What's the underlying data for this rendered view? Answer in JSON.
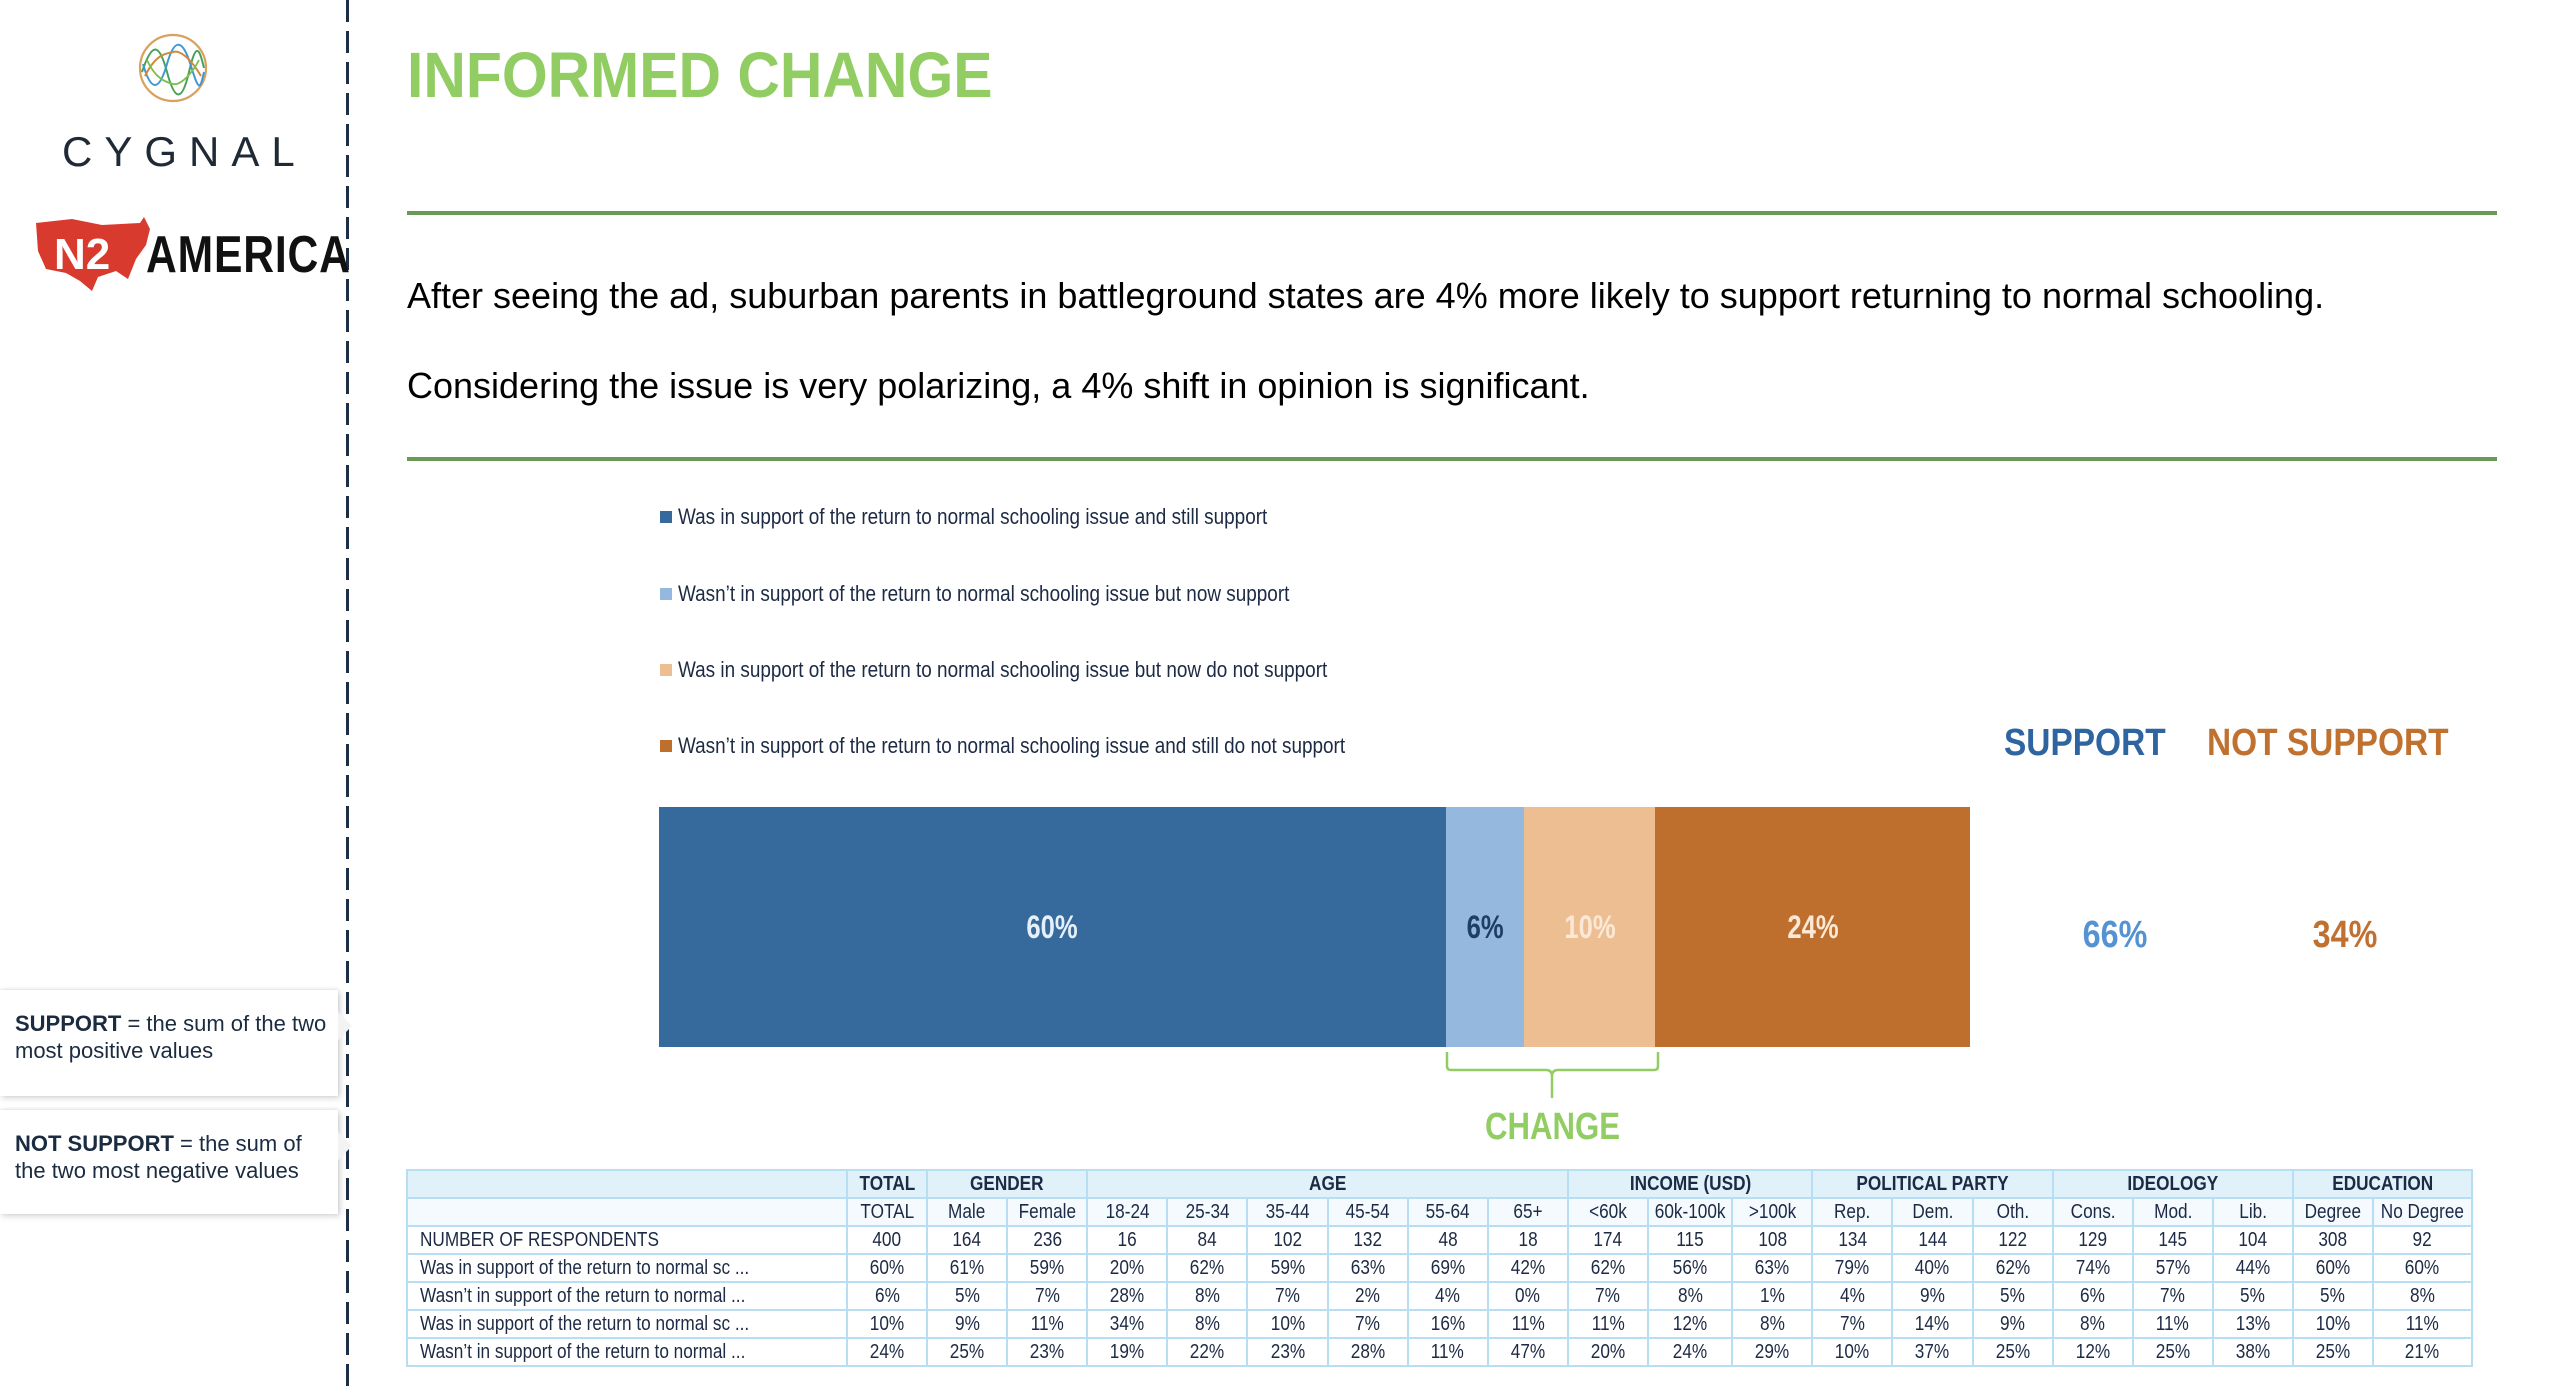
{
  "branding": {
    "cygnal_wordmark": "CYGNAL",
    "n2_logo_text": "N2",
    "n2_wordmark": "AMERICA"
  },
  "header": {
    "title": "INFORMED CHANGE"
  },
  "intro": {
    "line1": "After seeing the ad, suburban parents in battleground states are 4% more likely to support returning to normal schooling.",
    "line2": "Considering the issue is very polarizing, a 4% shift in opinion is significant."
  },
  "notes": {
    "support_term": "SUPPORT",
    "support_def": " = the sum of the two most positive values",
    "not_support_term": "NOT SUPPORT",
    "not_support_def": " = the sum of the two most negative values"
  },
  "colors": {
    "accent_green": "#92cd63",
    "rule_green": "#6a9a55",
    "support_blue": "#2e64a0",
    "not_support_orange": "#c0712f"
  },
  "chart_data": {
    "type": "bar",
    "orientation": "horizontal-stacked",
    "title": "",
    "xlabel": "",
    "ylabel": "",
    "xlim": [
      0,
      100
    ],
    "series": [
      {
        "name": "Was in support of the return to normal schooling issue and still support",
        "value": 60,
        "label": "60%",
        "color": "#376a9c",
        "label_color": "#e6f0fa"
      },
      {
        "name": "Wasn’t in support of the return to normal schooling issue but now support",
        "value": 6,
        "label": "6%",
        "color": "#94b8de",
        "label_color": "#1f3e63"
      },
      {
        "name": "Was in support of the return to normal schooling issue but now do not support",
        "value": 10,
        "label": "10%",
        "color": "#edbe92",
        "label_color": "#fbe8d6"
      },
      {
        "name": "Wasn’t in support of the return to normal schooling issue and still do not support",
        "value": 24,
        "label": "24%",
        "color": "#bf6f2d",
        "label_color": "#fbe8d6"
      }
    ],
    "legend_position": "top-left",
    "annotation": "CHANGE",
    "summary": {
      "support_label": "SUPPORT",
      "support_value": "66%",
      "not_support_label": "NOT SUPPORT",
      "not_support_value": "34%"
    }
  },
  "table": {
    "groups": [
      {
        "label": "",
        "span": 1
      },
      {
        "label": "TOTAL",
        "span": 1
      },
      {
        "label": "GENDER",
        "span": 2
      },
      {
        "label": "AGE",
        "span": 6
      },
      {
        "label": "INCOME (USD)",
        "span": 3
      },
      {
        "label": "POLITICAL PARTY",
        "span": 3
      },
      {
        "label": "IDEOLOGY",
        "span": 3
      },
      {
        "label": "EDUCATION",
        "span": 2
      }
    ],
    "columns": [
      "",
      "TOTAL",
      "Male",
      "Female",
      "18-24",
      "25-34",
      "35-44",
      "45-54",
      "55-64",
      "65+",
      "<60k",
      "60k-100k",
      ">100k",
      "Rep.",
      "Dem.",
      "Oth.",
      "Cons.",
      "Mod.",
      "Lib.",
      "Degree",
      "No Degree"
    ],
    "rows": [
      {
        "label": "NUMBER OF RESPONDENTS",
        "values": [
          "400",
          "164",
          "236",
          "16",
          "84",
          "102",
          "132",
          "48",
          "18",
          "174",
          "115",
          "108",
          "134",
          "144",
          "122",
          "129",
          "145",
          "104",
          "308",
          "92"
        ]
      },
      {
        "label": "Was in support of the return to normal sc ...",
        "values": [
          "60%",
          "61%",
          "59%",
          "20%",
          "62%",
          "59%",
          "63%",
          "69%",
          "42%",
          "62%",
          "56%",
          "63%",
          "79%",
          "40%",
          "62%",
          "74%",
          "57%",
          "44%",
          "60%",
          "60%"
        ]
      },
      {
        "label": "Wasn’t in support of the return to normal ...",
        "values": [
          "6%",
          "5%",
          "7%",
          "28%",
          "8%",
          "7%",
          "2%",
          "4%",
          "0%",
          "7%",
          "8%",
          "1%",
          "4%",
          "9%",
          "5%",
          "6%",
          "7%",
          "5%",
          "5%",
          "8%"
        ]
      },
      {
        "label": "Was in support of the return to normal sc ...",
        "values": [
          "10%",
          "9%",
          "11%",
          "34%",
          "8%",
          "10%",
          "7%",
          "16%",
          "11%",
          "11%",
          "12%",
          "8%",
          "7%",
          "14%",
          "9%",
          "8%",
          "11%",
          "13%",
          "10%",
          "11%"
        ]
      },
      {
        "label": "Wasn’t in support of the return to normal ...",
        "values": [
          "24%",
          "25%",
          "23%",
          "19%",
          "22%",
          "23%",
          "28%",
          "11%",
          "47%",
          "20%",
          "24%",
          "29%",
          "10%",
          "37%",
          "25%",
          "12%",
          "25%",
          "38%",
          "25%",
          "21%"
        ]
      }
    ]
  }
}
